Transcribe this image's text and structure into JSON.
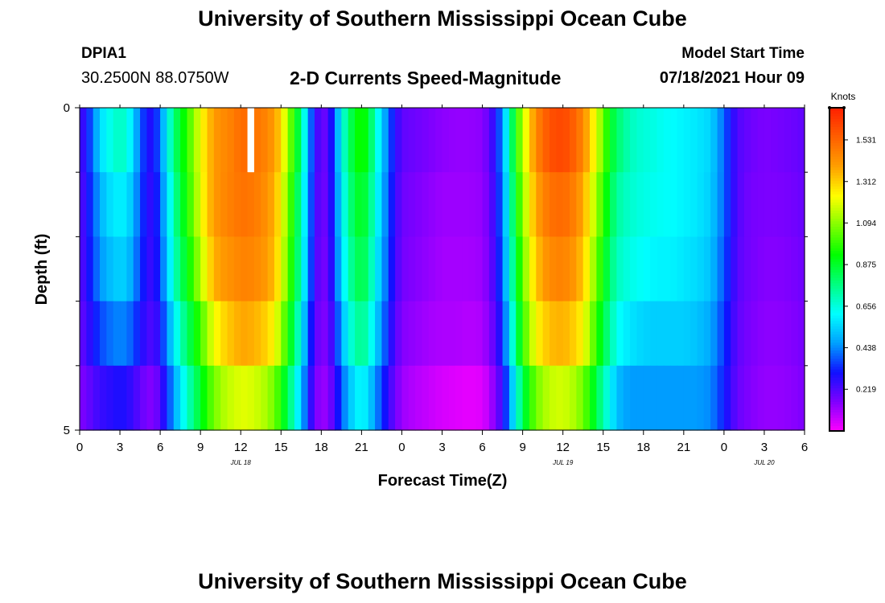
{
  "page": {
    "title": "University of Southern Mississippi Ocean Cube",
    "footer_title": "University of Southern Mississippi Ocean Cube",
    "station_id": "DPIA1",
    "station_coords": "30.2500N  88.0750W",
    "subtitle": "2-D Currents Speed-Magnitude",
    "model_start_label": "Model Start Time",
    "model_start_value": "07/18/2021 Hour 09"
  },
  "colors": {
    "background": "#ffffff",
    "missing_value": "#ffffff",
    "colormap": [
      "#ff00ff",
      "#8000ff",
      "#1010ff",
      "#00a0ff",
      "#00ffff",
      "#00ff80",
      "#00ff00",
      "#80ff00",
      "#ffff00",
      "#ffa000",
      "#ff6000",
      "#ff2000"
    ]
  },
  "chart_data": {
    "type": "heatmap",
    "title": "2-D Currents Speed-Magnitude",
    "xlabel": "Forecast Time(Z)",
    "ylabel": "Depth (ft)",
    "units": "Knots",
    "x_start_hour": 0,
    "x_end_hour": 54,
    "x_ticks": [
      {
        "hour": 0,
        "label": "0"
      },
      {
        "hour": 3,
        "label": "3"
      },
      {
        "hour": 6,
        "label": "6"
      },
      {
        "hour": 9,
        "label": "9"
      },
      {
        "hour": 12,
        "label": "12"
      },
      {
        "hour": 15,
        "label": "15"
      },
      {
        "hour": 18,
        "label": "18"
      },
      {
        "hour": 21,
        "label": "21"
      },
      {
        "hour": 24,
        "label": "0"
      },
      {
        "hour": 27,
        "label": "3"
      },
      {
        "hour": 30,
        "label": "6"
      },
      {
        "hour": 33,
        "label": "9"
      },
      {
        "hour": 36,
        "label": "12"
      },
      {
        "hour": 39,
        "label": "15"
      },
      {
        "hour": 42,
        "label": "18"
      },
      {
        "hour": 45,
        "label": "21"
      },
      {
        "hour": 48,
        "label": "0"
      },
      {
        "hour": 51,
        "label": "3"
      },
      {
        "hour": 54,
        "label": "6"
      }
    ],
    "date_labels": [
      {
        "hour": 12,
        "label": "JUL 18"
      },
      {
        "hour": 36,
        "label": "JUL 19"
      },
      {
        "hour": 51,
        "label": "JUL 20"
      }
    ],
    "y_range": [
      0,
      5
    ],
    "y_tick_labels": [
      {
        "depth": 0,
        "label": "0"
      },
      {
        "depth": 5,
        "label": "5"
      }
    ],
    "y_minor_ticks": [
      1,
      2,
      3,
      4
    ],
    "depth_levels": 5,
    "hour_step": 0.5,
    "colorbar": {
      "label": "Knots",
      "min": 0,
      "max": 1.7,
      "ticks": [
        0.219,
        0.438,
        0.656,
        0.875,
        1.094,
        1.312,
        1.531
      ],
      "tick_labels": [
        "0.219",
        "0.438",
        "0.656",
        "0.875",
        "1.094",
        "1.312",
        "1.531"
      ]
    },
    "missing_cells": [
      {
        "hour": 12.5,
        "level": 0
      }
    ],
    "speed_profiles": [
      {
        "description": "surface layer 0-1 ft",
        "hours": [
          0,
          0.5,
          1,
          1.5,
          2,
          2.5,
          3,
          3.5,
          4,
          4.5,
          5,
          5.5,
          6,
          6.5,
          7,
          7.5,
          8,
          8.5,
          9,
          9.5,
          10,
          10.5,
          11,
          11.5,
          12,
          12.5,
          13,
          13.5,
          14,
          14.5,
          15,
          15.5,
          16,
          16.5,
          17,
          17.5,
          18,
          18.5,
          19,
          19.5,
          20,
          20.5,
          21,
          21.5,
          22,
          22.5,
          23,
          23.5,
          24,
          25,
          26,
          27,
          28,
          29,
          30,
          30.5,
          31,
          31.5,
          32,
          32.5,
          33,
          33.5,
          34,
          34.5,
          35,
          35.5,
          36,
          36.5,
          37,
          37.5,
          38,
          38.5,
          39,
          39.5,
          40,
          40.5,
          41,
          41.5,
          42,
          42.5,
          43,
          44,
          45,
          46,
          47,
          48,
          48.5,
          49,
          49.5,
          50,
          51,
          52,
          53,
          54
        ],
        "speeds": [
          0.22,
          0.3,
          0.42,
          0.55,
          0.62,
          0.66,
          0.7,
          0.66,
          0.55,
          0.4,
          0.3,
          0.28,
          0.42,
          0.6,
          0.78,
          0.88,
          0.98,
          1.1,
          1.22,
          1.32,
          1.4,
          1.44,
          1.45,
          1.48,
          1.52,
          1.52,
          1.5,
          1.48,
          1.45,
          1.4,
          1.3,
          1.12,
          0.95,
          0.78,
          0.5,
          0.28,
          0.18,
          0.2,
          0.4,
          0.62,
          0.78,
          0.9,
          0.96,
          0.88,
          0.7,
          0.55,
          0.4,
          0.28,
          0.2,
          0.18,
          0.16,
          0.14,
          0.13,
          0.13,
          0.14,
          0.2,
          0.3,
          0.45,
          0.7,
          0.95,
          1.15,
          1.3,
          1.45,
          1.52,
          1.58,
          1.6,
          1.6,
          1.58,
          1.52,
          1.45,
          1.32,
          1.2,
          1.05,
          0.9,
          0.8,
          0.75,
          0.7,
          0.68,
          0.66,
          0.66,
          0.64,
          0.62,
          0.6,
          0.58,
          0.55,
          0.4,
          0.3,
          0.22,
          0.2,
          0.18,
          0.16,
          0.17,
          0.18,
          0.2
        ]
      },
      {
        "description": "layer 1-2 ft",
        "hours": [
          0,
          0.5,
          1,
          1.5,
          2,
          2.5,
          3,
          3.5,
          4,
          4.5,
          5,
          5.5,
          6,
          6.5,
          7,
          7.5,
          8,
          8.5,
          9,
          9.5,
          10,
          10.5,
          11,
          11.5,
          12,
          12.5,
          13,
          13.5,
          14,
          14.5,
          15,
          15.5,
          16,
          16.5,
          17,
          17.5,
          18,
          18.5,
          19,
          19.5,
          20,
          20.5,
          21,
          21.5,
          22,
          22.5,
          23,
          23.5,
          24,
          25,
          26,
          27,
          28,
          29,
          30,
          30.5,
          31,
          31.5,
          32,
          32.5,
          33,
          33.5,
          34,
          34.5,
          35,
          35.5,
          36,
          36.5,
          37,
          37.5,
          38,
          38.5,
          39,
          39.5,
          40,
          40.5,
          41,
          41.5,
          42,
          42.5,
          43,
          44,
          45,
          46,
          47,
          48,
          48.5,
          49,
          49.5,
          50,
          51,
          52,
          53,
          54
        ],
        "speeds": [
          0.2,
          0.28,
          0.38,
          0.48,
          0.55,
          0.58,
          0.6,
          0.58,
          0.5,
          0.38,
          0.28,
          0.26,
          0.38,
          0.55,
          0.72,
          0.85,
          0.95,
          1.08,
          1.2,
          1.32,
          1.4,
          1.44,
          1.46,
          1.48,
          1.5,
          1.5,
          1.48,
          1.46,
          1.42,
          1.36,
          1.25,
          1.08,
          0.9,
          0.72,
          0.48,
          0.26,
          0.17,
          0.2,
          0.38,
          0.58,
          0.74,
          0.85,
          0.9,
          0.82,
          0.66,
          0.52,
          0.38,
          0.26,
          0.18,
          0.16,
          0.14,
          0.12,
          0.12,
          0.12,
          0.13,
          0.18,
          0.28,
          0.42,
          0.66,
          0.9,
          1.1,
          1.25,
          1.38,
          1.45,
          1.5,
          1.52,
          1.52,
          1.5,
          1.45,
          1.38,
          1.25,
          1.12,
          0.98,
          0.85,
          0.74,
          0.7,
          0.68,
          0.66,
          0.65,
          0.64,
          0.63,
          0.62,
          0.6,
          0.58,
          0.54,
          0.4,
          0.3,
          0.22,
          0.19,
          0.17,
          0.16,
          0.16,
          0.17,
          0.19
        ]
      },
      {
        "description": "layer 2-3 ft",
        "hours": [
          0,
          0.5,
          1,
          1.5,
          2,
          2.5,
          3,
          3.5,
          4,
          4.5,
          5,
          5.5,
          6,
          6.5,
          7,
          7.5,
          8,
          8.5,
          9,
          9.5,
          10,
          10.5,
          11,
          11.5,
          12,
          12.5,
          13,
          13.5,
          14,
          14.5,
          15,
          15.5,
          16,
          16.5,
          17,
          17.5,
          18,
          18.5,
          19,
          19.5,
          20,
          20.5,
          21,
          21.5,
          22,
          22.5,
          23,
          23.5,
          24,
          25,
          26,
          27,
          28,
          29,
          30,
          30.5,
          31,
          31.5,
          32,
          32.5,
          33,
          33.5,
          34,
          34.5,
          35,
          35.5,
          36,
          36.5,
          37,
          37.5,
          38,
          38.5,
          39,
          39.5,
          40,
          40.5,
          41,
          41.5,
          42,
          42.5,
          43,
          44,
          45,
          46,
          47,
          48,
          48.5,
          49,
          49.5,
          50,
          51,
          52,
          53,
          54
        ],
        "speeds": [
          0.2,
          0.27,
          0.36,
          0.44,
          0.5,
          0.52,
          0.55,
          0.53,
          0.46,
          0.36,
          0.27,
          0.25,
          0.36,
          0.52,
          0.68,
          0.8,
          0.9,
          1.02,
          1.14,
          1.26,
          1.36,
          1.4,
          1.42,
          1.44,
          1.46,
          1.46,
          1.45,
          1.43,
          1.4,
          1.34,
          1.22,
          1.05,
          0.88,
          0.7,
          0.46,
          0.25,
          0.16,
          0.19,
          0.36,
          0.55,
          0.7,
          0.8,
          0.85,
          0.78,
          0.62,
          0.5,
          0.36,
          0.25,
          0.17,
          0.15,
          0.13,
          0.11,
          0.11,
          0.11,
          0.12,
          0.17,
          0.26,
          0.4,
          0.62,
          0.85,
          1.05,
          1.2,
          1.32,
          1.4,
          1.44,
          1.46,
          1.46,
          1.44,
          1.4,
          1.32,
          1.2,
          1.06,
          0.92,
          0.8,
          0.7,
          0.67,
          0.65,
          0.63,
          0.62,
          0.61,
          0.6,
          0.6,
          0.58,
          0.56,
          0.52,
          0.38,
          0.29,
          0.21,
          0.19,
          0.17,
          0.15,
          0.15,
          0.16,
          0.18
        ]
      },
      {
        "description": "layer 3-4 ft",
        "hours": [
          0,
          0.5,
          1,
          1.5,
          2,
          2.5,
          3,
          3.5,
          4,
          4.5,
          5,
          5.5,
          6,
          6.5,
          7,
          7.5,
          8,
          8.5,
          9,
          9.5,
          10,
          10.5,
          11,
          11.5,
          12,
          12.5,
          13,
          13.5,
          14,
          14.5,
          15,
          15.5,
          16,
          16.5,
          17,
          17.5,
          18,
          18.5,
          19,
          19.5,
          20,
          20.5,
          21,
          21.5,
          22,
          22.5,
          23,
          23.5,
          24,
          25,
          26,
          27,
          28,
          29,
          30,
          30.5,
          31,
          31.5,
          32,
          32.5,
          33,
          33.5,
          34,
          34.5,
          35,
          35.5,
          36,
          36.5,
          37,
          37.5,
          38,
          38.5,
          39,
          39.5,
          40,
          40.5,
          41,
          41.5,
          42,
          42.5,
          43,
          44,
          45,
          46,
          47,
          48,
          48.5,
          49,
          49.5,
          50,
          51,
          52,
          53,
          54
        ],
        "speeds": [
          0.18,
          0.24,
          0.3,
          0.36,
          0.4,
          0.42,
          0.44,
          0.42,
          0.38,
          0.3,
          0.24,
          0.22,
          0.3,
          0.44,
          0.58,
          0.7,
          0.8,
          0.9,
          1.0,
          1.12,
          1.22,
          1.28,
          1.32,
          1.35,
          1.38,
          1.38,
          1.36,
          1.34,
          1.3,
          1.24,
          1.12,
          0.96,
          0.8,
          0.62,
          0.4,
          0.22,
          0.15,
          0.17,
          0.3,
          0.48,
          0.62,
          0.72,
          0.76,
          0.7,
          0.56,
          0.45,
          0.32,
          0.22,
          0.15,
          0.13,
          0.11,
          0.1,
          0.1,
          0.09,
          0.1,
          0.15,
          0.22,
          0.34,
          0.55,
          0.78,
          0.98,
          1.12,
          1.24,
          1.3,
          1.34,
          1.36,
          1.36,
          1.34,
          1.3,
          1.24,
          1.12,
          0.98,
          0.85,
          0.74,
          0.64,
          0.6,
          0.58,
          0.56,
          0.55,
          0.54,
          0.54,
          0.54,
          0.54,
          0.52,
          0.48,
          0.35,
          0.27,
          0.2,
          0.18,
          0.16,
          0.14,
          0.14,
          0.15,
          0.17
        ]
      },
      {
        "description": "layer 4-5 ft",
        "hours": [
          0,
          0.5,
          1,
          1.5,
          2,
          2.5,
          3,
          3.5,
          4,
          4.5,
          5,
          5.5,
          6,
          6.5,
          7,
          7.5,
          8,
          8.5,
          9,
          9.5,
          10,
          10.5,
          11,
          11.5,
          12,
          12.5,
          13,
          13.5,
          14,
          14.5,
          15,
          15.5,
          16,
          16.5,
          17,
          17.5,
          18,
          18.5,
          19,
          19.5,
          20,
          20.5,
          21,
          21.5,
          22,
          22.5,
          23,
          23.5,
          24,
          25,
          26,
          27,
          28,
          29,
          30,
          30.5,
          31,
          31.5,
          32,
          32.5,
          33,
          33.5,
          34,
          34.5,
          35,
          35.5,
          36,
          36.5,
          37,
          37.5,
          38,
          38.5,
          39,
          39.5,
          40,
          40.5,
          41,
          41.5,
          42,
          42.5,
          43,
          44,
          45,
          46,
          47,
          48,
          48.5,
          49,
          49.5,
          50,
          51,
          52,
          53,
          54
        ],
        "speeds": [
          0.15,
          0.18,
          0.22,
          0.25,
          0.27,
          0.28,
          0.3,
          0.28,
          0.25,
          0.2,
          0.16,
          0.15,
          0.22,
          0.34,
          0.46,
          0.58,
          0.68,
          0.78,
          0.88,
          0.98,
          1.06,
          1.12,
          1.16,
          1.18,
          1.2,
          1.2,
          1.18,
          1.16,
          1.12,
          1.06,
          0.96,
          0.82,
          0.68,
          0.52,
          0.34,
          0.18,
          0.12,
          0.14,
          0.24,
          0.38,
          0.5,
          0.58,
          0.62,
          0.56,
          0.46,
          0.36,
          0.26,
          0.18,
          0.12,
          0.09,
          0.07,
          0.05,
          0.04,
          0.03,
          0.04,
          0.09,
          0.16,
          0.26,
          0.44,
          0.64,
          0.82,
          0.96,
          1.06,
          1.12,
          1.16,
          1.18,
          1.18,
          1.16,
          1.12,
          1.06,
          0.96,
          0.84,
          0.72,
          0.62,
          0.52,
          0.48,
          0.46,
          0.46,
          0.46,
          0.46,
          0.46,
          0.46,
          0.46,
          0.46,
          0.44,
          0.32,
          0.25,
          0.19,
          0.17,
          0.15,
          0.13,
          0.13,
          0.14,
          0.16
        ]
      }
    ]
  }
}
